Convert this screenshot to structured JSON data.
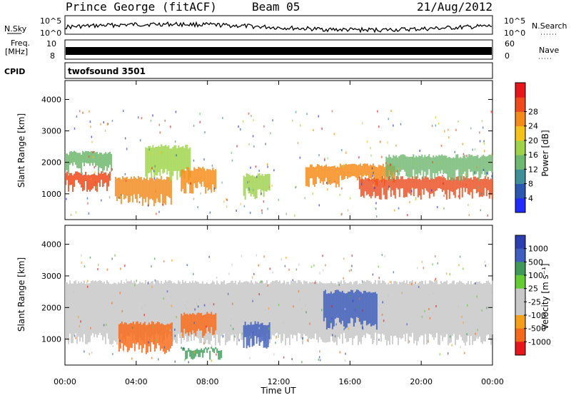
{
  "header": {
    "station": "Prince George (fitACF)",
    "beam": "Beam 05",
    "date": "21/Aug/2012"
  },
  "strip_panels": {
    "nsky_label": "N.Sky",
    "nsearch_label": "N.Search",
    "nsky_ticks": [
      "10^5",
      "10^0"
    ],
    "freq_label_line1": "Freq.",
    "freq_label_line2": "[MHz]",
    "freq_ticks": [
      "10",
      "8"
    ],
    "nave_label": "Nave",
    "nave_ticks": [
      "60",
      "0"
    ],
    "cpid_label": "CPID",
    "cpid_value": "twofsound 3501"
  },
  "chart_data": [
    {
      "type": "heatmap",
      "name": "power",
      "xlabel": "",
      "ylabel": "Slant Range [km]",
      "x_ticks": [
        "00:00",
        "04:00",
        "08:00",
        "12:00",
        "16:00",
        "20:00",
        "00:00"
      ],
      "y_ticks": [
        1000,
        2000,
        3000,
        4000
      ],
      "ylim": [
        180,
        4600
      ],
      "colorbar_label": "Power [dB]",
      "colorbar_ticks": [
        4,
        8,
        12,
        16,
        20,
        24,
        28
      ],
      "colorbar_colors": [
        "#1f2bff",
        "#2b57b0",
        "#3f8f9a",
        "#6fb86f",
        "#9ed24a",
        "#f4c21a",
        "#f48a1a",
        "#f04a1a",
        "#e8161a"
      ],
      "bands": [
        {
          "t": [
            0.0,
            2.5
          ],
          "range": [
            1250,
            1650
          ],
          "level": 26
        },
        {
          "t": [
            0.0,
            2.6
          ],
          "range": [
            1800,
            2300
          ],
          "level": 12
        },
        {
          "t": [
            2.8,
            6.0
          ],
          "range": [
            800,
            1500
          ],
          "level": 24
        },
        {
          "t": [
            4.5,
            7.0
          ],
          "range": [
            1600,
            2500
          ],
          "level": 14
        },
        {
          "t": [
            6.5,
            8.5
          ],
          "range": [
            1200,
            1800
          ],
          "level": 22
        },
        {
          "t": [
            10.0,
            11.5
          ],
          "range": [
            1000,
            1600
          ],
          "level": 16
        },
        {
          "t": [
            13.5,
            18.5
          ],
          "range": [
            1400,
            1900
          ],
          "level": 22
        },
        {
          "t": [
            16.5,
            24.0
          ],
          "range": [
            1000,
            1500
          ],
          "level": 26
        },
        {
          "t": [
            18.0,
            24.0
          ],
          "range": [
            1600,
            2200
          ],
          "level": 10
        }
      ]
    },
    {
      "type": "heatmap",
      "name": "velocity",
      "xlabel": "Time UT",
      "ylabel": "Slant Range [km]",
      "x_ticks": [
        "00:00",
        "04:00",
        "08:00",
        "12:00",
        "16:00",
        "20:00",
        "00:00"
      ],
      "y_ticks": [
        1000,
        2000,
        3000,
        4000
      ],
      "ylim": [
        180,
        4600
      ],
      "colorbar_label": "Velocity [m s⁻¹]",
      "colorbar_ticks": [
        1000,
        500,
        100,
        25,
        -25,
        -100,
        -500,
        -1000
      ],
      "colorbar_colors": [
        "#2b3fb0",
        "#3f5fc0",
        "#3f9a5a",
        "#66cc33",
        "#c8c8c8",
        "#c8c8c8",
        "#f4a01a",
        "#f46a1a",
        "#e8161a"
      ],
      "bands": [
        {
          "t": [
            0.0,
            24.0
          ],
          "range": [
            1000,
            2800
          ],
          "velocity": 0
        },
        {
          "t": [
            3.0,
            6.0
          ],
          "range": [
            700,
            1500
          ],
          "velocity": -400
        },
        {
          "t": [
            6.5,
            8.5
          ],
          "range": [
            1200,
            1800
          ],
          "velocity": -350
        },
        {
          "t": [
            6.5,
            8.8
          ],
          "range": [
            550,
            700
          ],
          "velocity": 120
        },
        {
          "t": [
            10.0,
            11.5
          ],
          "range": [
            900,
            1500
          ],
          "velocity": 500
        },
        {
          "t": [
            14.5,
            17.5
          ],
          "range": [
            1500,
            2500
          ],
          "velocity": 600
        }
      ]
    }
  ]
}
